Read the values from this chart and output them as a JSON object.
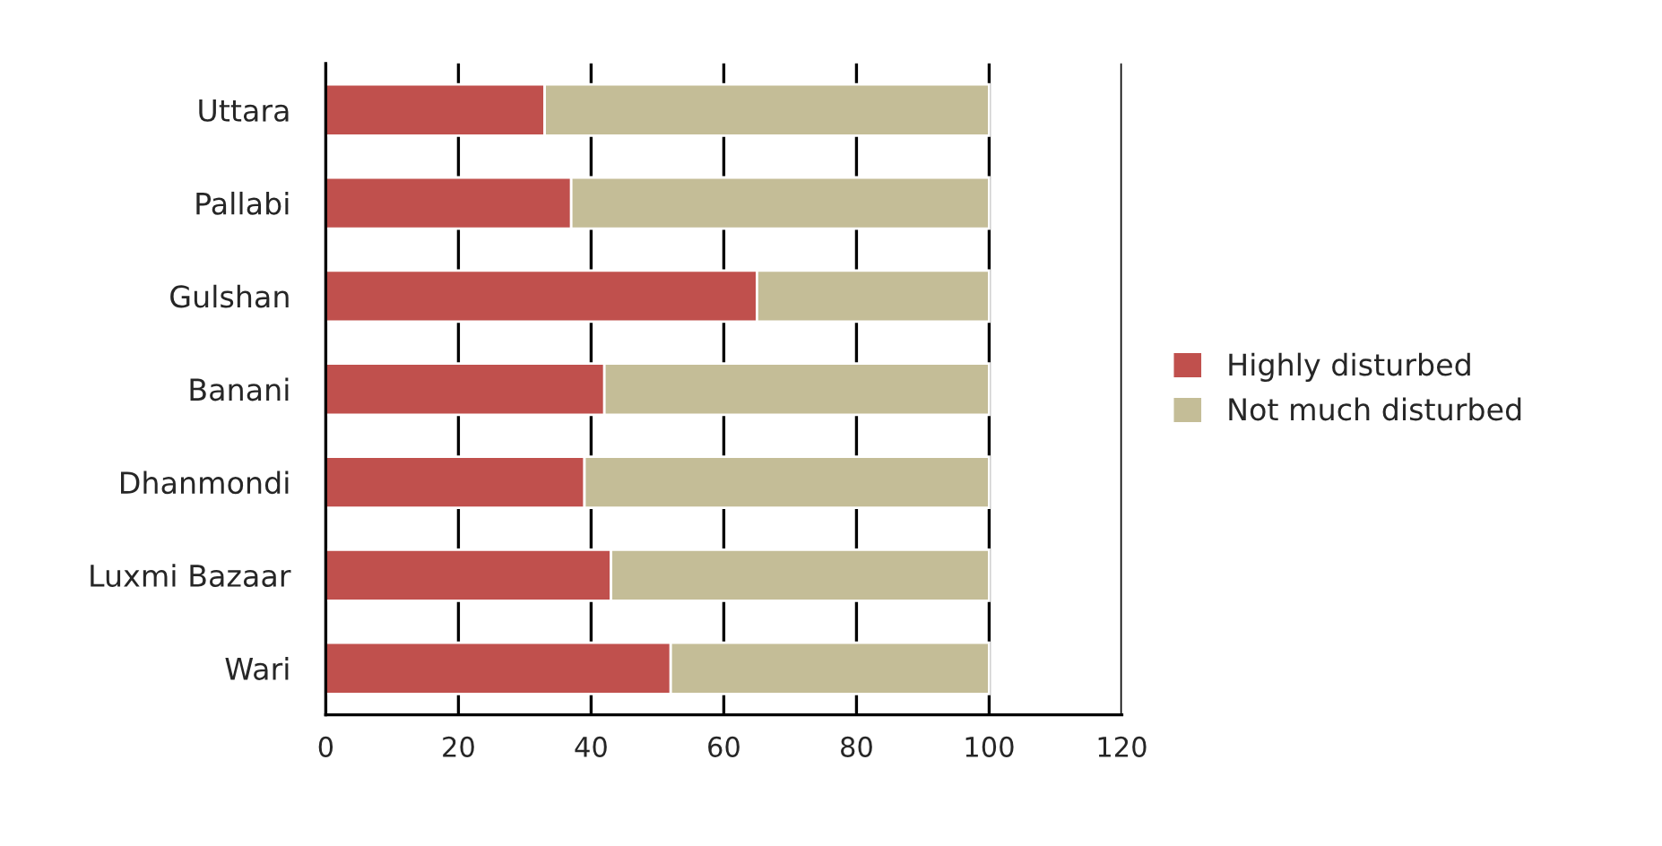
{
  "chart_data": {
    "type": "bar",
    "orientation": "horizontal",
    "stacked": true,
    "categories": [
      "Uttara",
      "Pallabi",
      "Gulshan",
      "Banani",
      "Dhanmondi",
      "Luxmi Bazaar",
      "Wari"
    ],
    "series": [
      {
        "name": "Highly disturbed",
        "color": "#c0504d",
        "values": [
          33,
          37,
          65,
          42,
          39,
          43,
          52
        ]
      },
      {
        "name": "Not much disturbed",
        "color": "#c4bd97",
        "values": [
          67,
          63,
          35,
          58,
          61,
          57,
          48
        ]
      }
    ],
    "xlim": [
      0,
      120
    ],
    "xticks": [
      0,
      20,
      40,
      60,
      80,
      100,
      120
    ],
    "grid": "x",
    "legend": "right"
  }
}
